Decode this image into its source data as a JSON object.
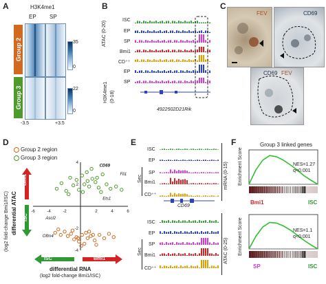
{
  "colors": {
    "group2": "#d2691e",
    "group3": "#4e9a2a",
    "isc": "#3aa13a",
    "ep": "#2a42c4",
    "sp": "#d43ad4",
    "bmi1": "#d42323",
    "cd": "#e0a000",
    "heat_dark": "#0c2e60",
    "bmi1_red": "#d42323",
    "isc_green": "#2f9a34"
  },
  "panelA": {
    "label": "A",
    "title": "H3K4me1",
    "col_labels": [
      "EP",
      "SP"
    ],
    "group2": "Group 2",
    "group3": "Group 3",
    "cbar2": [
      "35",
      "0"
    ],
    "cbar3": [
      "22",
      "0"
    ],
    "xticks": [
      "-3.5",
      "+3.5"
    ]
  },
  "panelB": {
    "label": "B",
    "tracks": [
      "ISC",
      "EP",
      "SP",
      "Bmi1",
      "CD⁺⁺",
      "EP",
      "SP"
    ],
    "atac_label": "ATAC (0-20)",
    "h3_label": "H3K4me1",
    "h3_range": "(0-18)",
    "gene": "4922502D21Rik"
  },
  "panelC": {
    "label": "C",
    "img1_label": "FEV",
    "img2_label": "CD69",
    "img3_label_a": "CD69",
    "img3_label_b": "FEV"
  },
  "panelD": {
    "label": "D",
    "legend": [
      "Group 2 region",
      "Group 3 region"
    ],
    "ylabel1": "differential ATAC",
    "ylabel2": "(log2 fold-change Bmi1/ISC)",
    "xlabel1": "differential RNA",
    "xlabel2": "(log2 fold-change Bmi1/ISC)",
    "arrow_bmi1": "Bmi1",
    "arrow_isc": "ISC",
    "genes": [
      "CD69",
      "Fli1",
      "Ets1",
      "Ascl2",
      "Olfm4"
    ],
    "xticks": [
      "-6",
      "-4",
      "-2",
      "2",
      "4",
      "6"
    ],
    "yticks": [
      "4",
      "2",
      "-2",
      "-4"
    ]
  },
  "panelE": {
    "label": "E",
    "mrna_tracks": [
      "ISC",
      "EP",
      "SP",
      "Bmi1",
      "CD⁺⁺"
    ],
    "atac_tracks": [
      "ISC",
      "EP",
      "SP",
      "Bmi1",
      "CD⁺⁺"
    ],
    "sec": "Sec",
    "mrna_label": "mRNA (0-15)",
    "atac_label": "ATAC (0-25)",
    "gene": "CD69"
  },
  "panelF": {
    "label": "F",
    "title": "Group 3 linked genes",
    "ylabel": "Enrichment Score",
    "top_stats_a": "NES=1.27",
    "top_stats_b": "q<0.001",
    "top_left": "Bmi1",
    "top_right": "ISC",
    "bot_stats_a": "NES=1.1",
    "bot_stats_b": "q<0.001",
    "bot_left": "SP",
    "bot_right": "ISC"
  },
  "chart_data": [
    {
      "type": "scatter",
      "title": "",
      "xlabel": "differential RNA (log2 fold-change Bmi1/ISC)",
      "ylabel": "differential ATAC (log2 fold-change Bmi1/ISC)",
      "xlim": [
        -6,
        6
      ],
      "ylim": [
        -4,
        4
      ],
      "series": [
        {
          "name": "Group 2 region",
          "note_points": "approx.",
          "x": [
            -3.2,
            -2.5,
            -2.0,
            -1.6,
            -1.2,
            -0.8,
            -0.5,
            -0.2,
            0.2,
            0.5,
            0.9,
            1.3,
            1.8,
            2.4,
            3.0,
            3.6,
            4.2,
            0.1,
            -1.0,
            1.1,
            2.0,
            -2.8,
            0.7,
            -0.3,
            1.6
          ],
          "y": [
            -2.4,
            -2.6,
            -2.3,
            -2.7,
            -2.5,
            -3.0,
            -2.8,
            -3.2,
            -2.6,
            -3.4,
            -2.9,
            -2.7,
            -3.1,
            -2.6,
            -2.9,
            -2.5,
            -2.8,
            -3.6,
            -2.2,
            -2.3,
            -3.5,
            -2.1,
            -2.4,
            -2.9,
            -2.6
          ]
        },
        {
          "name": "Group 3 region",
          "x": [
            -3.0,
            -2.4,
            -1.8,
            -1.3,
            -0.9,
            -0.5,
            -0.2,
            0.2,
            0.5,
            0.8,
            1.1,
            1.5,
            1.9,
            2.3,
            2.8,
            3.3,
            3.8,
            4.5,
            5.2,
            0.3,
            1.4,
            2.1,
            -1.5,
            0.9,
            2.6
          ],
          "y": [
            1.6,
            2.1,
            1.4,
            2.6,
            1.9,
            2.4,
            1.5,
            2.8,
            2.0,
            3.1,
            1.8,
            2.5,
            2.2,
            1.7,
            2.9,
            2.0,
            1.6,
            1.8,
            1.5,
            1.3,
            3.4,
            2.6,
            1.1,
            2.3,
            1.3
          ]
        }
      ]
    },
    {
      "type": "line",
      "title": "Group 3 linked genes",
      "ylabel": "Enrichment Score",
      "series": [
        {
          "name": "Bmi1 vs ISC",
          "x": [
            0,
            0.1,
            0.2,
            0.3,
            0.4,
            0.5,
            0.6,
            0.7,
            0.8,
            0.9,
            1.0
          ],
          "values": [
            0,
            0.25,
            0.42,
            0.5,
            0.48,
            0.42,
            0.34,
            0.25,
            0.15,
            0.07,
            0
          ]
        }
      ]
    },
    {
      "type": "line",
      "title": "",
      "ylabel": "Enrichment Score",
      "series": [
        {
          "name": "SP vs ISC",
          "x": [
            0,
            0.1,
            0.2,
            0.3,
            0.4,
            0.5,
            0.6,
            0.7,
            0.8,
            0.9,
            1.0
          ],
          "values": [
            0,
            0.22,
            0.38,
            0.46,
            0.45,
            0.4,
            0.33,
            0.24,
            0.15,
            0.07,
            0
          ]
        }
      ]
    }
  ]
}
